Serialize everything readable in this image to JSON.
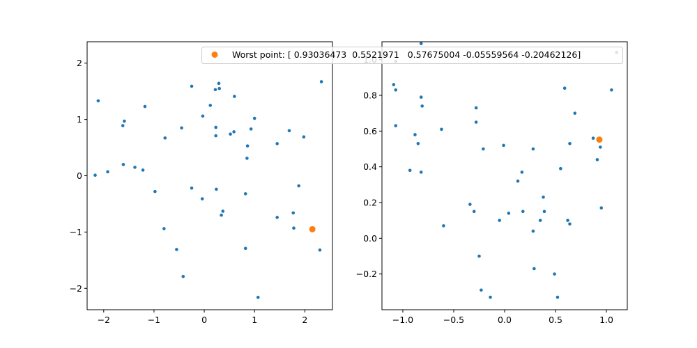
{
  "colors": {
    "points": "#1f77b4",
    "worst": "#ff7f0e",
    "axis": "#000000",
    "legend_border": "#cccccc"
  },
  "legend": {
    "label": "Worst point: [ 0.93036473  0.5521971   0.57675004 -0.05559564 -0.20462126]"
  },
  "chart_data": [
    {
      "type": "scatter",
      "xlim": [
        -2.33,
        2.55
      ],
      "ylim": [
        -2.38,
        2.38
      ],
      "xticks": [
        -2,
        -1,
        0,
        1,
        2
      ],
      "xtick_labels": [
        "−2",
        "−1",
        "0",
        "1",
        "2"
      ],
      "yticks": [
        -2,
        -1,
        0,
        1,
        2
      ],
      "ytick_labels": [
        "−2",
        "−1",
        "0",
        "1",
        "2"
      ],
      "series": [
        {
          "color": "#1f77b4",
          "points": [
            [
              -2.11,
              1.33
            ],
            [
              -2.17,
              0.01
            ],
            [
              -1.92,
              0.07
            ],
            [
              -1.62,
              0.89
            ],
            [
              -1.59,
              0.97
            ],
            [
              -1.61,
              0.2
            ],
            [
              -1.38,
              0.15
            ],
            [
              -1.22,
              0.1
            ],
            [
              -1.18,
              1.23
            ],
            [
              -0.98,
              -0.28
            ],
            [
              -0.78,
              0.67
            ],
            [
              -0.8,
              -0.94
            ],
            [
              -0.55,
              -1.31
            ],
            [
              -0.45,
              0.85
            ],
            [
              -0.42,
              -1.79
            ],
            [
              -0.25,
              1.59
            ],
            [
              -0.25,
              -0.22
            ],
            [
              -0.03,
              1.06
            ],
            [
              -0.04,
              -0.41
            ],
            [
              0.12,
              1.25
            ],
            [
              0.22,
              1.53
            ],
            [
              0.23,
              0.86
            ],
            [
              0.23,
              0.71
            ],
            [
              0.24,
              -0.24
            ],
            [
              0.29,
              1.64
            ],
            [
              0.3,
              1.55
            ],
            [
              0.34,
              -0.7
            ],
            [
              0.37,
              -0.63
            ],
            [
              0.52,
              0.74
            ],
            [
              0.59,
              0.78
            ],
            [
              0.6,
              1.41
            ],
            [
              0.82,
              -0.32
            ],
            [
              0.82,
              -1.29
            ],
            [
              0.85,
              0.31
            ],
            [
              0.86,
              0.53
            ],
            [
              0.93,
              0.83
            ],
            [
              1.0,
              1.02
            ],
            [
              1.07,
              -2.16
            ],
            [
              1.45,
              0.57
            ],
            [
              1.45,
              -0.74
            ],
            [
              1.69,
              0.8
            ],
            [
              1.77,
              -0.66
            ],
            [
              1.78,
              -0.93
            ],
            [
              1.88,
              -0.18
            ],
            [
              1.98,
              0.69
            ],
            [
              2.3,
              -1.32
            ],
            [
              2.33,
              1.67
            ]
          ]
        },
        {
          "color": "#ff7f0e",
          "points": [
            [
              2.15,
              -0.95
            ]
          ]
        }
      ]
    },
    {
      "type": "scatter",
      "xlim": [
        -1.205,
        1.205
      ],
      "ylim": [
        -0.4,
        1.1
      ],
      "xticks": [
        -1.0,
        -0.5,
        0.0,
        0.5,
        1.0
      ],
      "xtick_labels": [
        "−1.0",
        "−0.5",
        "0.0",
        "0.5",
        "1.0"
      ],
      "yticks": [
        -0.2,
        0.0,
        0.2,
        0.4,
        0.6,
        0.8,
        1.0
      ],
      "ytick_labels": [
        "−0.2",
        "0.0",
        "0.2",
        "0.4",
        "0.6",
        "0.8",
        "1.0"
      ],
      "series": [
        {
          "color": "#1f77b4",
          "points": [
            [
              -1.07,
              0.99
            ],
            [
              -1.09,
              0.86
            ],
            [
              -1.07,
              0.83
            ],
            [
              -1.07,
              0.63
            ],
            [
              -0.82,
              1.09
            ],
            [
              -0.82,
              0.79
            ],
            [
              -0.81,
              0.74
            ],
            [
              -0.88,
              0.58
            ],
            [
              -0.85,
              0.53
            ],
            [
              -0.93,
              0.38
            ],
            [
              -0.82,
              0.37
            ],
            [
              -0.62,
              0.61
            ],
            [
              -0.6,
              0.07
            ],
            [
              -0.28,
              0.73
            ],
            [
              -0.28,
              0.65
            ],
            [
              -0.21,
              0.5
            ],
            [
              -0.34,
              0.19
            ],
            [
              -0.3,
              0.15
            ],
            [
              -0.25,
              -0.1
            ],
            [
              -0.23,
              -0.29
            ],
            [
              -0.14,
              -0.33
            ],
            [
              -0.05,
              0.1
            ],
            [
              -0.01,
              0.52
            ],
            [
              0.04,
              0.14
            ],
            [
              0.13,
              0.32
            ],
            [
              0.17,
              0.37
            ],
            [
              0.18,
              0.15
            ],
            [
              0.28,
              0.5
            ],
            [
              0.28,
              0.04
            ],
            [
              0.29,
              -0.17
            ],
            [
              0.35,
              0.1
            ],
            [
              0.38,
              0.23
            ],
            [
              0.39,
              0.15
            ],
            [
              0.49,
              -0.2
            ],
            [
              0.52,
              -0.33
            ],
            [
              0.55,
              0.39
            ],
            [
              0.59,
              0.84
            ],
            [
              0.62,
              0.1
            ],
            [
              0.64,
              0.08
            ],
            [
              0.64,
              0.53
            ],
            [
              0.69,
              0.7
            ],
            [
              0.87,
              0.56
            ],
            [
              0.91,
              0.44
            ],
            [
              0.94,
              0.51
            ],
            [
              0.95,
              0.17
            ],
            [
              1.05,
              0.83
            ],
            [
              1.1,
              1.04
            ]
          ]
        },
        {
          "color": "#ff7f0e",
          "points": [
            [
              0.93036473,
              0.5521971
            ]
          ]
        }
      ]
    }
  ]
}
